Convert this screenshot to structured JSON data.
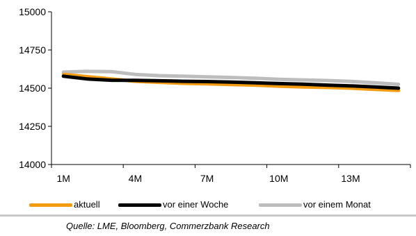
{
  "chart_data": {
    "type": "line",
    "x": [
      "1M",
      "2M",
      "3M",
      "4M",
      "5M",
      "6M",
      "7M",
      "8M",
      "9M",
      "10M",
      "11M",
      "12M",
      "13M",
      "14M",
      "15M"
    ],
    "xtick_labels": [
      "1M",
      "4M",
      "7M",
      "10M",
      "13M"
    ],
    "ylim": [
      14000,
      15000
    ],
    "yticks": [
      14000,
      14250,
      14500,
      14750,
      15000
    ],
    "series": [
      {
        "name": "aktuell",
        "color": "#f39c12",
        "values": [
          14590,
          14575,
          14560,
          14545,
          14538,
          14532,
          14528,
          14524,
          14520,
          14513,
          14508,
          14505,
          14500,
          14492,
          14485
        ]
      },
      {
        "name": "vor einer Woche",
        "color": "#000000",
        "values": [
          14578,
          14560,
          14552,
          14551,
          14548,
          14545,
          14543,
          14540,
          14535,
          14530,
          14526,
          14520,
          14515,
          14508,
          14500
        ]
      },
      {
        "name": "vor einem Monat",
        "color": "#bdbdbd",
        "values": [
          14605,
          14610,
          14608,
          14590,
          14582,
          14578,
          14574,
          14570,
          14565,
          14558,
          14554,
          14550,
          14544,
          14535,
          14525
        ]
      }
    ],
    "grid": false,
    "legend_position": "bottom"
  },
  "source": "Quelle: LME, Bloomberg, Commerzbank Research"
}
